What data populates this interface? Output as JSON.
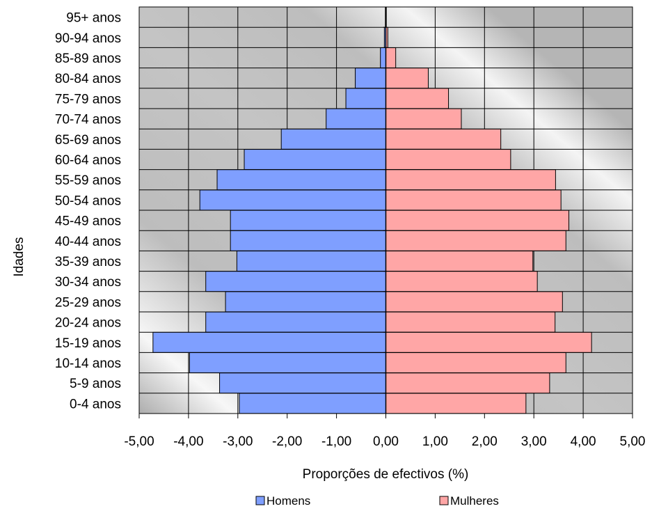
{
  "chart_data": {
    "type": "bar",
    "orientation": "horizontal",
    "ylabel": "Idades",
    "xlabel": "Proporções de efectivos (%)",
    "xlim": [
      -5,
      5
    ],
    "xticks": [
      "-5,00",
      "-4,00",
      "-3,00",
      "-2,00",
      "-1,00",
      "0,00",
      "1,00",
      "2,00",
      "3,00",
      "4,00",
      "5,00"
    ],
    "categories": [
      "0-4 anos",
      "5-9 anos",
      "10-14 anos",
      "15-19 anos",
      "20-24 anos",
      "25-29 anos",
      "30-34 anos",
      "35-39 anos",
      "40-44 anos",
      "45-49 anos",
      "50-54 anos",
      "55-59 anos",
      "60-64 anos",
      "65-69 anos",
      "70-74 anos",
      "75-79 anos",
      "80-84 anos",
      "85-89 anos",
      "90-94 anos",
      "95+ anos"
    ],
    "series": [
      {
        "name": "Homens",
        "color": "#7f9fff",
        "values": [
          -2.97,
          -3.37,
          -3.98,
          -4.72,
          -3.65,
          -3.25,
          -3.65,
          -3.02,
          -3.15,
          -3.15,
          -3.77,
          -3.42,
          -2.87,
          -2.12,
          -1.21,
          -0.81,
          -0.62,
          -0.11,
          -0.03,
          -0.01
        ]
      },
      {
        "name": "Mulheres",
        "color": "#ffa6a6",
        "values": [
          2.84,
          3.32,
          3.65,
          4.17,
          3.43,
          3.58,
          3.07,
          2.98,
          3.65,
          3.71,
          3.55,
          3.44,
          2.53,
          2.33,
          1.53,
          1.27,
          0.86,
          0.2,
          0.04,
          0.01
        ]
      }
    ],
    "grid": true,
    "legend_position": "bottom",
    "colors": {
      "plot_background": "#c0c0c0",
      "gridlines": "#000000",
      "bar_edge": "#000000"
    }
  }
}
